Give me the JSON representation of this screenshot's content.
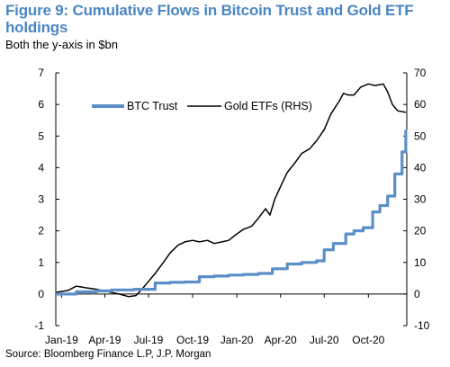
{
  "title": "Figure 9: Cumulative Flows in Bitcoin Trust and Gold ETF holdings",
  "subtitle": "Both the y-axis in $bn",
  "source": "Source: Bloomberg Finance L.P, J.P. Morgan",
  "colors": {
    "title": "#4a86c5",
    "btc": "#5b8fc8",
    "gold": "#000000"
  },
  "chart_data": {
    "type": "line",
    "x_ticks": [
      "Jan-19",
      "Apr-19",
      "Jul-19",
      "Oct-19",
      "Jan-20",
      "Apr-20",
      "Jul-20",
      "Oct-20"
    ],
    "x_tick_dates": [
      "2019-01-01",
      "2019-04-01",
      "2019-07-01",
      "2019-10-01",
      "2020-01-01",
      "2020-04-01",
      "2020-07-01",
      "2020-10-01"
    ],
    "xlim": [
      "2018-12-20",
      "2020-12-20"
    ],
    "y_left": {
      "lim": [
        -1,
        7
      ],
      "ticks": [
        "-1",
        "0",
        "1",
        "2",
        "3",
        "4",
        "5",
        "6",
        "7"
      ]
    },
    "y_right": {
      "lim": [
        -10,
        70
      ],
      "ticks": [
        "-10",
        "0",
        "10",
        "20",
        "30",
        "40",
        "50",
        "60",
        "70"
      ]
    },
    "legend_position": "top-left",
    "series": [
      {
        "name": "BTC Trust",
        "axis": "left",
        "color": "#5b8fc8",
        "x": [
          "2018-12-20",
          "2019-02-01",
          "2019-03-15",
          "2019-04-15",
          "2019-06-01",
          "2019-07-15",
          "2019-08-15",
          "2019-09-15",
          "2019-10-15",
          "2019-11-15",
          "2019-12-15",
          "2020-01-15",
          "2020-02-15",
          "2020-03-15",
          "2020-04-15",
          "2020-05-15",
          "2020-06-15",
          "2020-07-01",
          "2020-07-20",
          "2020-08-15",
          "2020-09-01",
          "2020-09-20",
          "2020-10-10",
          "2020-10-25",
          "2020-11-10",
          "2020-11-25",
          "2020-12-10",
          "2020-12-18"
        ],
        "y": [
          0.0,
          0.07,
          0.1,
          0.13,
          0.15,
          0.35,
          0.37,
          0.38,
          0.55,
          0.57,
          0.6,
          0.62,
          0.65,
          0.8,
          0.95,
          1.0,
          1.05,
          1.4,
          1.6,
          1.9,
          2.0,
          2.1,
          2.6,
          2.8,
          3.1,
          3.8,
          4.5,
          5.2
        ]
      },
      {
        "name": "Gold ETFs (RHS)",
        "axis": "right",
        "color": "#000000",
        "x": [
          "2018-12-20",
          "2019-01-15",
          "2019-02-01",
          "2019-02-20",
          "2019-03-15",
          "2019-04-01",
          "2019-04-15",
          "2019-05-01",
          "2019-05-20",
          "2019-06-05",
          "2019-06-20",
          "2019-07-01",
          "2019-07-15",
          "2019-08-01",
          "2019-08-15",
          "2019-09-01",
          "2019-09-15",
          "2019-10-01",
          "2019-10-15",
          "2019-11-01",
          "2019-11-15",
          "2019-12-01",
          "2019-12-15",
          "2020-01-01",
          "2020-01-15",
          "2020-02-01",
          "2020-02-15",
          "2020-03-01",
          "2020-03-10",
          "2020-03-20",
          "2020-04-01",
          "2020-04-15",
          "2020-05-01",
          "2020-05-15",
          "2020-06-01",
          "2020-06-15",
          "2020-07-01",
          "2020-07-15",
          "2020-08-01",
          "2020-08-10",
          "2020-08-20",
          "2020-09-01",
          "2020-09-15",
          "2020-10-01",
          "2020-10-15",
          "2020-11-01",
          "2020-11-10",
          "2020-11-20",
          "2020-12-01",
          "2020-12-18"
        ],
        "y": [
          0.5,
          1.2,
          2.5,
          2.0,
          1.5,
          1.0,
          0.5,
          0.0,
          -0.8,
          -0.5,
          2.0,
          4.0,
          6.5,
          10.0,
          13.0,
          15.5,
          16.5,
          17.0,
          16.5,
          17.0,
          16.0,
          16.5,
          17.0,
          19.0,
          20.5,
          21.5,
          24.0,
          27.0,
          25.0,
          30.0,
          34.0,
          38.5,
          41.5,
          44.5,
          46.0,
          48.5,
          52.0,
          57.0,
          61.0,
          63.5,
          63.0,
          63.0,
          65.5,
          66.5,
          66.0,
          66.5,
          64.0,
          60.0,
          58.0,
          57.5
        ]
      }
    ]
  }
}
